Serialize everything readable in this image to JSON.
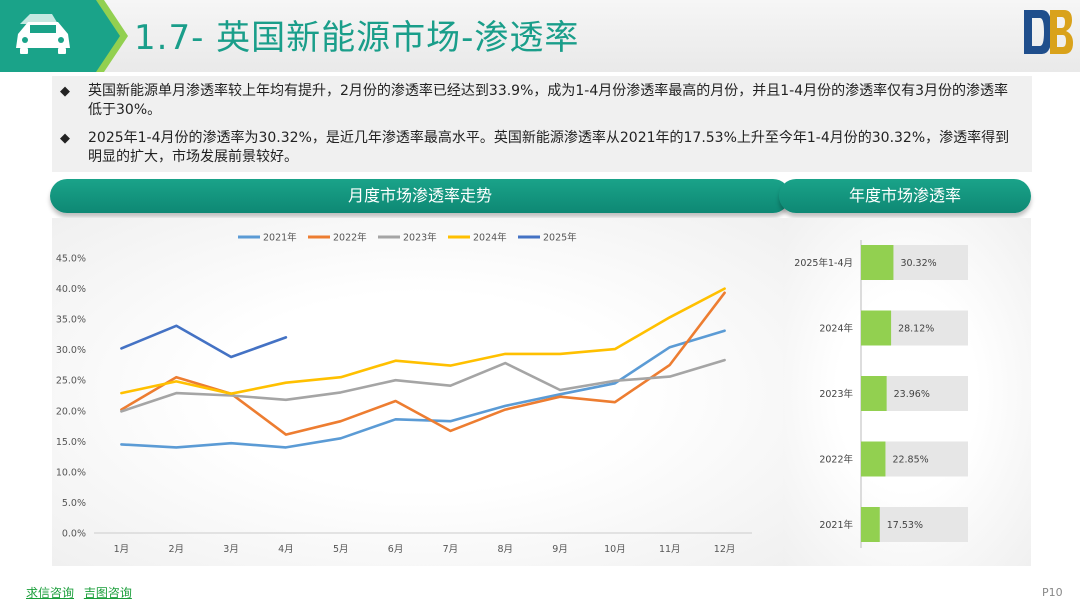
{
  "header": {
    "title": "1.7- 英国新能源市场-渗透率"
  },
  "bullets": [
    "英国新能源单月渗透率较上年均有提升，2月份的渗透率已经达到33.9%，成为1-4月份渗透率最高的月份，并且1-4月份的渗透率仅有3月份的渗透率低于30%。",
    "2025年1-4月份的渗透率为30.32%，是近几年渗透率最高水平。英国新能源渗透率从2021年的17.53%上升至今年1-4月份的30.32%，渗透率得到明显的扩大，市场发展前景较好。"
  ],
  "bullet_marker": "◆",
  "panels": {
    "monthly_title": "月度市场渗透率走势",
    "annual_title": "年度市场渗透率"
  },
  "footer": {
    "links": [
      "求信咨询",
      "吉图咨询"
    ],
    "page": "P10"
  },
  "icons": {
    "header_left": "car-icon",
    "header_right": "db-logo-icon"
  },
  "colors": {
    "teal": "#1aa389",
    "green": "#92d050",
    "bar_bg": "#e6e6e6"
  },
  "chart_data": [
    {
      "type": "line",
      "title": "",
      "categories": [
        "1月",
        "2月",
        "3月",
        "4月",
        "5月",
        "6月",
        "7月",
        "8月",
        "9月",
        "10月",
        "11月",
        "12月"
      ],
      "y_ticks": [
        "0.0%",
        "5.0%",
        "10.0%",
        "15.0%",
        "20.0%",
        "25.0%",
        "30.0%",
        "35.0%",
        "40.0%",
        "45.0%"
      ],
      "ylim": [
        0,
        45
      ],
      "legend_position": "top",
      "grid": false,
      "series": [
        {
          "name": "2021年",
          "color": "#5b9bd5",
          "values": [
            14.5,
            14.0,
            14.7,
            14.0,
            15.5,
            18.6,
            18.3,
            20.8,
            22.7,
            24.5,
            30.4,
            33.1
          ]
        },
        {
          "name": "2022年",
          "color": "#ed7d31",
          "values": [
            20.2,
            25.5,
            22.8,
            16.1,
            18.3,
            21.6,
            16.7,
            20.2,
            22.3,
            21.4,
            27.5,
            39.3
          ]
        },
        {
          "name": "2023年",
          "color": "#a5a5a5",
          "values": [
            19.9,
            22.9,
            22.5,
            21.8,
            23.0,
            25.0,
            24.1,
            27.8,
            23.4,
            24.9,
            25.6,
            28.3
          ]
        },
        {
          "name": "2024年",
          "color": "#ffc000",
          "values": [
            22.9,
            24.8,
            22.8,
            24.6,
            25.5,
            28.2,
            27.4,
            29.3,
            29.3,
            30.1,
            35.3,
            40.0
          ]
        },
        {
          "name": "2025年",
          "color": "#4472c4",
          "values": [
            30.2,
            33.9,
            28.8,
            32.0,
            null,
            null,
            null,
            null,
            null,
            null,
            null,
            null
          ]
        }
      ]
    },
    {
      "type": "bar",
      "orientation": "horizontal",
      "title": "",
      "categories": [
        "2025年1-4月",
        "2024年",
        "2023年",
        "2022年",
        "2021年"
      ],
      "values": [
        30.32,
        28.12,
        23.96,
        22.85,
        17.53
      ],
      "labels": [
        "30.32%",
        "28.12%",
        "23.96%",
        "22.85%",
        "17.53%"
      ],
      "xlim": [
        0,
        100
      ]
    }
  ]
}
